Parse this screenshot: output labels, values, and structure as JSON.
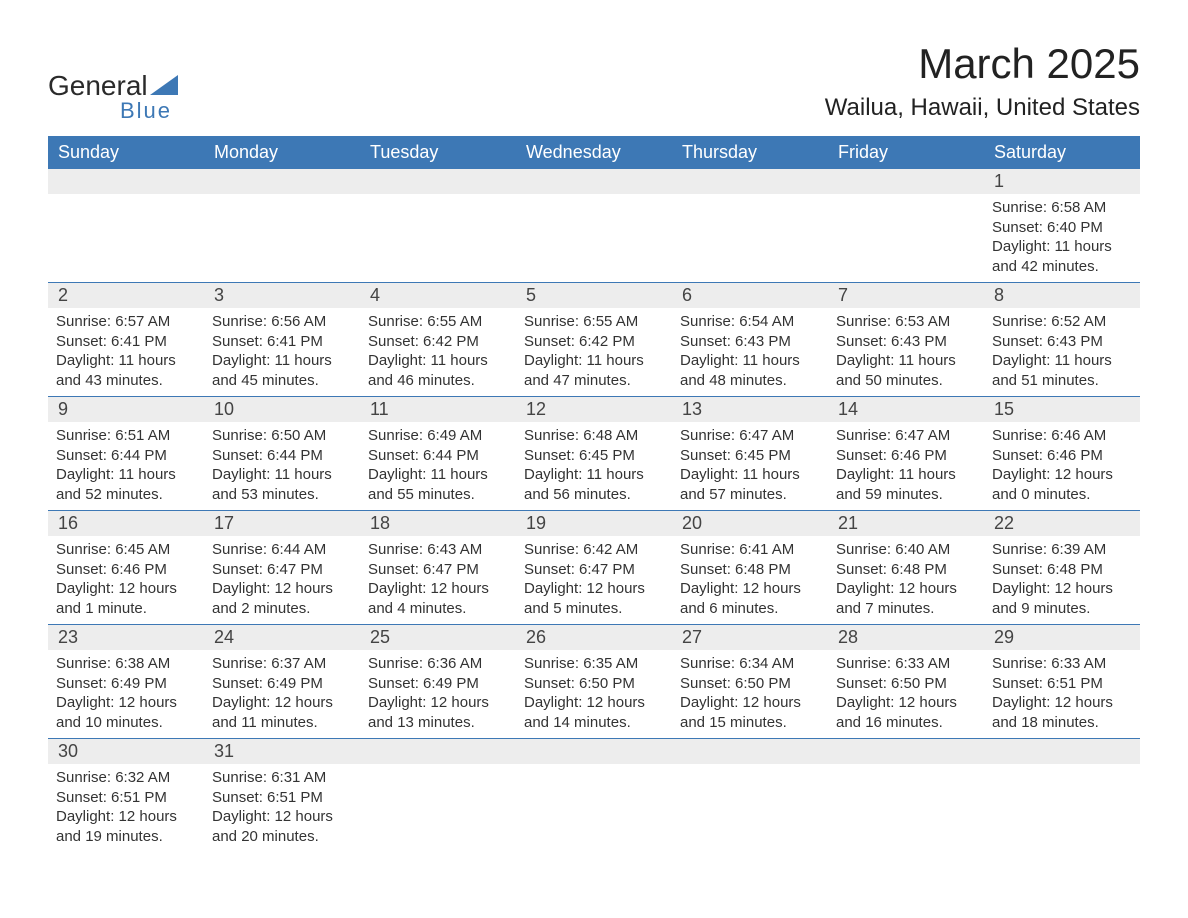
{
  "logo": {
    "general": "General",
    "blue": "Blue"
  },
  "title": "March 2025",
  "location": "Wailua, Hawaii, United States",
  "colors": {
    "header_bg": "#3d78b5",
    "header_text": "#ffffff",
    "daynum_bg": "#ededed",
    "text": "#333333",
    "border": "#3d78b5",
    "background": "#ffffff"
  },
  "day_names": [
    "Sunday",
    "Monday",
    "Tuesday",
    "Wednesday",
    "Thursday",
    "Friday",
    "Saturday"
  ],
  "weeks": [
    [
      null,
      null,
      null,
      null,
      null,
      null,
      {
        "n": "1",
        "sr": "Sunrise: 6:58 AM",
        "ss": "Sunset: 6:40 PM",
        "d1": "Daylight: 11 hours",
        "d2": "and 42 minutes."
      }
    ],
    [
      {
        "n": "2",
        "sr": "Sunrise: 6:57 AM",
        "ss": "Sunset: 6:41 PM",
        "d1": "Daylight: 11 hours",
        "d2": "and 43 minutes."
      },
      {
        "n": "3",
        "sr": "Sunrise: 6:56 AM",
        "ss": "Sunset: 6:41 PM",
        "d1": "Daylight: 11 hours",
        "d2": "and 45 minutes."
      },
      {
        "n": "4",
        "sr": "Sunrise: 6:55 AM",
        "ss": "Sunset: 6:42 PM",
        "d1": "Daylight: 11 hours",
        "d2": "and 46 minutes."
      },
      {
        "n": "5",
        "sr": "Sunrise: 6:55 AM",
        "ss": "Sunset: 6:42 PM",
        "d1": "Daylight: 11 hours",
        "d2": "and 47 minutes."
      },
      {
        "n": "6",
        "sr": "Sunrise: 6:54 AM",
        "ss": "Sunset: 6:43 PM",
        "d1": "Daylight: 11 hours",
        "d2": "and 48 minutes."
      },
      {
        "n": "7",
        "sr": "Sunrise: 6:53 AM",
        "ss": "Sunset: 6:43 PM",
        "d1": "Daylight: 11 hours",
        "d2": "and 50 minutes."
      },
      {
        "n": "8",
        "sr": "Sunrise: 6:52 AM",
        "ss": "Sunset: 6:43 PM",
        "d1": "Daylight: 11 hours",
        "d2": "and 51 minutes."
      }
    ],
    [
      {
        "n": "9",
        "sr": "Sunrise: 6:51 AM",
        "ss": "Sunset: 6:44 PM",
        "d1": "Daylight: 11 hours",
        "d2": "and 52 minutes."
      },
      {
        "n": "10",
        "sr": "Sunrise: 6:50 AM",
        "ss": "Sunset: 6:44 PM",
        "d1": "Daylight: 11 hours",
        "d2": "and 53 minutes."
      },
      {
        "n": "11",
        "sr": "Sunrise: 6:49 AM",
        "ss": "Sunset: 6:44 PM",
        "d1": "Daylight: 11 hours",
        "d2": "and 55 minutes."
      },
      {
        "n": "12",
        "sr": "Sunrise: 6:48 AM",
        "ss": "Sunset: 6:45 PM",
        "d1": "Daylight: 11 hours",
        "d2": "and 56 minutes."
      },
      {
        "n": "13",
        "sr": "Sunrise: 6:47 AM",
        "ss": "Sunset: 6:45 PM",
        "d1": "Daylight: 11 hours",
        "d2": "and 57 minutes."
      },
      {
        "n": "14",
        "sr": "Sunrise: 6:47 AM",
        "ss": "Sunset: 6:46 PM",
        "d1": "Daylight: 11 hours",
        "d2": "and 59 minutes."
      },
      {
        "n": "15",
        "sr": "Sunrise: 6:46 AM",
        "ss": "Sunset: 6:46 PM",
        "d1": "Daylight: 12 hours",
        "d2": "and 0 minutes."
      }
    ],
    [
      {
        "n": "16",
        "sr": "Sunrise: 6:45 AM",
        "ss": "Sunset: 6:46 PM",
        "d1": "Daylight: 12 hours",
        "d2": "and 1 minute."
      },
      {
        "n": "17",
        "sr": "Sunrise: 6:44 AM",
        "ss": "Sunset: 6:47 PM",
        "d1": "Daylight: 12 hours",
        "d2": "and 2 minutes."
      },
      {
        "n": "18",
        "sr": "Sunrise: 6:43 AM",
        "ss": "Sunset: 6:47 PM",
        "d1": "Daylight: 12 hours",
        "d2": "and 4 minutes."
      },
      {
        "n": "19",
        "sr": "Sunrise: 6:42 AM",
        "ss": "Sunset: 6:47 PM",
        "d1": "Daylight: 12 hours",
        "d2": "and 5 minutes."
      },
      {
        "n": "20",
        "sr": "Sunrise: 6:41 AM",
        "ss": "Sunset: 6:48 PM",
        "d1": "Daylight: 12 hours",
        "d2": "and 6 minutes."
      },
      {
        "n": "21",
        "sr": "Sunrise: 6:40 AM",
        "ss": "Sunset: 6:48 PM",
        "d1": "Daylight: 12 hours",
        "d2": "and 7 minutes."
      },
      {
        "n": "22",
        "sr": "Sunrise: 6:39 AM",
        "ss": "Sunset: 6:48 PM",
        "d1": "Daylight: 12 hours",
        "d2": "and 9 minutes."
      }
    ],
    [
      {
        "n": "23",
        "sr": "Sunrise: 6:38 AM",
        "ss": "Sunset: 6:49 PM",
        "d1": "Daylight: 12 hours",
        "d2": "and 10 minutes."
      },
      {
        "n": "24",
        "sr": "Sunrise: 6:37 AM",
        "ss": "Sunset: 6:49 PM",
        "d1": "Daylight: 12 hours",
        "d2": "and 11 minutes."
      },
      {
        "n": "25",
        "sr": "Sunrise: 6:36 AM",
        "ss": "Sunset: 6:49 PM",
        "d1": "Daylight: 12 hours",
        "d2": "and 13 minutes."
      },
      {
        "n": "26",
        "sr": "Sunrise: 6:35 AM",
        "ss": "Sunset: 6:50 PM",
        "d1": "Daylight: 12 hours",
        "d2": "and 14 minutes."
      },
      {
        "n": "27",
        "sr": "Sunrise: 6:34 AM",
        "ss": "Sunset: 6:50 PM",
        "d1": "Daylight: 12 hours",
        "d2": "and 15 minutes."
      },
      {
        "n": "28",
        "sr": "Sunrise: 6:33 AM",
        "ss": "Sunset: 6:50 PM",
        "d1": "Daylight: 12 hours",
        "d2": "and 16 minutes."
      },
      {
        "n": "29",
        "sr": "Sunrise: 6:33 AM",
        "ss": "Sunset: 6:51 PM",
        "d1": "Daylight: 12 hours",
        "d2": "and 18 minutes."
      }
    ],
    [
      {
        "n": "30",
        "sr": "Sunrise: 6:32 AM",
        "ss": "Sunset: 6:51 PM",
        "d1": "Daylight: 12 hours",
        "d2": "and 19 minutes."
      },
      {
        "n": "31",
        "sr": "Sunrise: 6:31 AM",
        "ss": "Sunset: 6:51 PM",
        "d1": "Daylight: 12 hours",
        "d2": "and 20 minutes."
      },
      null,
      null,
      null,
      null,
      null
    ]
  ]
}
